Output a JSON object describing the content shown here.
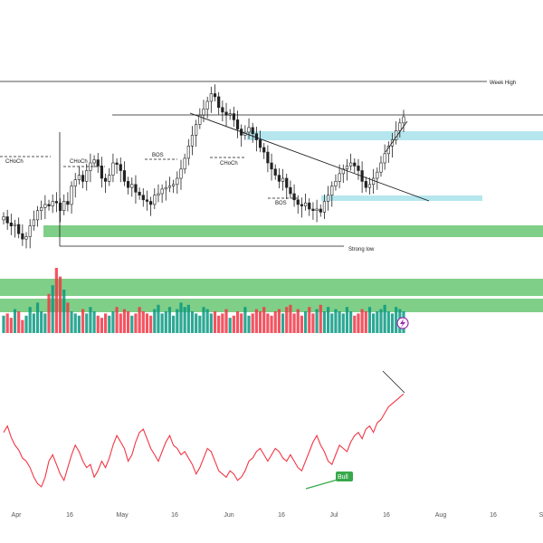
{
  "colors": {
    "up": "#089981",
    "down": "#f23645",
    "green_zone": "#7fcf88",
    "blue_zone": "#b5e6ee",
    "rsi_line": "#f23645",
    "bull_badge": "#37a84a",
    "line": "#1a1a1a",
    "axis_text": "#555555",
    "lightning": "#9c27b0"
  },
  "annotations": {
    "week_high": "Week High",
    "strong_low": "Strong low",
    "choch_1": "CHoCh",
    "choch_2": "CHoCh",
    "choch_3": "CHoCh",
    "bos_1": "BOS",
    "bos_2": "BOS",
    "bull": "Bull",
    "lightning_icon": "lightning-icon"
  },
  "chart_data": {
    "type": "candlestick",
    "x_axis_ticks": [
      "Apr",
      "16",
      "May",
      "16",
      "Jun",
      "16",
      "Jul",
      "16",
      "Aug",
      "16",
      "S"
    ],
    "price_closes": [
      130,
      122,
      118,
      120,
      108,
      101,
      104,
      118,
      126,
      138,
      142,
      146,
      144,
      150,
      148,
      138,
      150,
      146,
      170,
      178,
      184,
      176,
      190,
      200,
      204,
      196,
      180,
      176,
      184,
      200,
      198,
      190,
      176,
      168,
      172,
      162,
      158,
      152,
      150,
      146,
      158,
      160,
      166,
      168,
      170,
      172,
      180,
      192,
      206,
      222,
      236,
      250,
      262,
      270,
      280,
      290,
      286,
      272,
      266,
      262,
      264,
      256,
      244,
      236,
      240,
      246,
      238,
      230,
      220,
      214,
      200,
      192,
      184,
      176,
      180,
      168,
      160,
      152,
      146,
      144,
      148,
      140,
      138,
      140,
      136,
      150,
      158,
      170,
      176,
      186,
      192,
      196,
      200,
      196,
      190,
      176,
      168,
      172,
      180,
      188,
      200,
      212,
      222,
      230,
      242,
      252,
      260
    ],
    "volume": [
      8,
      9,
      7,
      11,
      10,
      6,
      8,
      12,
      9,
      14,
      10,
      9,
      18,
      22,
      30,
      26,
      20,
      14,
      10,
      9,
      8,
      11,
      9,
      12,
      10,
      8,
      7,
      9,
      8,
      10,
      12,
      9,
      11,
      10,
      8,
      9,
      12,
      10,
      9,
      8,
      11,
      13,
      9,
      10,
      12,
      8,
      11,
      14,
      12,
      13,
      10,
      9,
      8,
      12,
      11,
      9,
      10,
      8,
      9,
      11,
      7,
      8,
      10,
      9,
      12,
      8,
      9,
      11,
      10,
      12,
      9,
      8,
      10,
      11,
      9,
      12,
      13,
      9,
      11,
      8,
      10,
      12,
      9,
      11,
      13,
      10,
      12,
      9,
      11,
      10,
      9,
      12,
      10,
      8,
      9,
      11,
      10,
      12,
      9,
      10,
      11,
      13,
      10,
      9,
      12,
      11,
      10
    ],
    "rsi": [
      58,
      62,
      55,
      50,
      47,
      42,
      40,
      36,
      30,
      26,
      24,
      30,
      40,
      44,
      38,
      32,
      28,
      36,
      44,
      50,
      46,
      40,
      36,
      38,
      30,
      34,
      40,
      36,
      42,
      50,
      56,
      52,
      48,
      40,
      44,
      52,
      58,
      60,
      54,
      48,
      44,
      40,
      46,
      52,
      56,
      50,
      48,
      44,
      46,
      42,
      38,
      32,
      36,
      42,
      48,
      46,
      40,
      34,
      32,
      30,
      34,
      32,
      28,
      30,
      34,
      40,
      42,
      46,
      48,
      44,
      40,
      44,
      48,
      46,
      42,
      40,
      44,
      40,
      36,
      34,
      40,
      46,
      52,
      56,
      50,
      46,
      40,
      38,
      44,
      50,
      48,
      46,
      52,
      56,
      58,
      54,
      60,
      62,
      58,
      64,
      66,
      70,
      74,
      76,
      78,
      80,
      82
    ]
  }
}
